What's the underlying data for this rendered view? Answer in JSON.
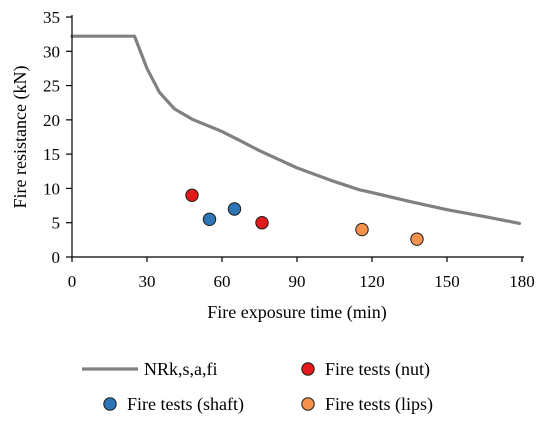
{
  "chart_data": {
    "type": "scatter",
    "title": "",
    "xlabel": "Fire exposure time (min)",
    "ylabel": "Fire resistance (kN)",
    "xlim": [
      0,
      180
    ],
    "ylim": [
      0,
      35
    ],
    "xticks": [
      0,
      30,
      60,
      90,
      120,
      150,
      180
    ],
    "yticks": [
      0,
      5,
      10,
      15,
      20,
      25,
      30,
      35
    ],
    "grid": false,
    "legend_position": "bottom",
    "series": [
      {
        "name": "NRk,s,a,fi",
        "kind": "line",
        "color": "#808080",
        "points": [
          [
            0,
            32.2
          ],
          [
            25,
            32.2
          ],
          [
            30,
            27.5
          ],
          [
            35,
            24.0
          ],
          [
            41,
            21.6
          ],
          [
            48,
            20.1
          ],
          [
            60,
            18.3
          ],
          [
            66,
            17.2
          ],
          [
            75,
            15.5
          ],
          [
            90,
            13.0
          ],
          [
            105,
            11.0
          ],
          [
            115,
            9.8
          ],
          [
            120,
            9.4
          ],
          [
            135,
            8.1
          ],
          [
            150,
            6.9
          ],
          [
            165,
            5.9
          ],
          [
            179,
            4.9
          ]
        ]
      },
      {
        "name": "Fire tests (nut)",
        "kind": "scatter",
        "color": "#e31a1c",
        "points": [
          [
            48,
            9.0
          ],
          [
            76,
            5.0
          ]
        ]
      },
      {
        "name": "Fire tests (shaft)",
        "kind": "scatter",
        "color": "#2e75b6",
        "points": [
          [
            55,
            5.5
          ],
          [
            65,
            7.0
          ]
        ]
      },
      {
        "name": "Fire tests (lips)",
        "kind": "scatter",
        "color": "#f4914d",
        "points": [
          [
            116,
            4.0
          ],
          [
            138,
            2.6
          ]
        ]
      }
    ]
  }
}
